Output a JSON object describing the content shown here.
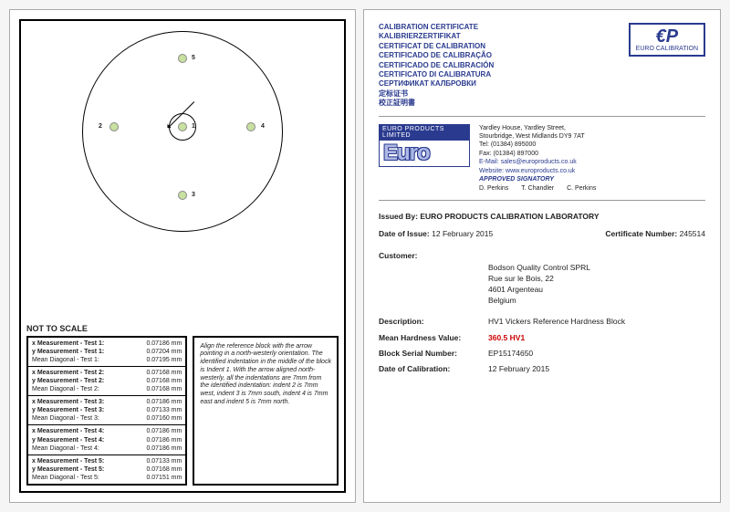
{
  "left": {
    "not_to_scale": "NOT TO SCALE",
    "point_labels": [
      "1",
      "2",
      "3",
      "4",
      "5"
    ],
    "measurements": [
      {
        "test": "1",
        "x": "0.07186 mm",
        "y": "0.07204 mm",
        "mean": "0.07195 mm"
      },
      {
        "test": "2",
        "x": "0.07168 mm",
        "y": "0.07168 mm",
        "mean": "0.07168 mm"
      },
      {
        "test": "3",
        "x": "0.07186 mm",
        "y": "0.07133 mm",
        "mean": "0.07160 mm"
      },
      {
        "test": "4",
        "x": "0.07186 mm",
        "y": "0.07186 mm",
        "mean": "0.07186 mm"
      },
      {
        "test": "5",
        "x": "0.07133 mm",
        "y": "0.07168 mm",
        "mean": "0.07151 mm"
      }
    ],
    "x_label_prefix": "x Measurement - Test ",
    "y_label_prefix": "y Measurement - Test ",
    "mean_label_prefix": "Mean Diagonal - Test ",
    "instructions": "Align the reference block with the arrow pointing in a north-westerly orientation. The identified indentation in the middle of the block is Indent 1. With the arrow aligned north-westerly, all the indentations are 7mm from the identified indentation: indent 2 is 7mm west, indent 3 is 7mm south, indent 4 is 7mm east and indent 5 is 7mm north."
  },
  "right": {
    "titles": [
      "CALIBRATION CERTIFICATE",
      "KALIBRIERZERTIFIKAT",
      "CERTIFICAT DE CALIBRATION",
      "CERTIFICADO DE CALIBRAÇÃO",
      "CERTIFICADO DE CALIBRACIÓN",
      "CERTIFICATO DI CALIBRATURA",
      "СЕРТИФИКАТ КАЛБРОВКИ",
      "定标证书",
      "校正証明書"
    ],
    "logo": {
      "ep": "€P",
      "label": "EURO CALIBRATION"
    },
    "banner": "EURO PRODUCTS LIMITED",
    "euro_text": "Euro",
    "company": {
      "addr1": "Yardley House, Yardley Street,",
      "addr2": "Stourbridge, West Midlands DY9 7AT",
      "tel": "Tel:   (01384) 895000",
      "fax": "Fax:  (01384) 897000",
      "email": "E-Mail: sales@europroducts.co.uk",
      "web": "Website: www.europroducts.co.uk",
      "signatory_label": "APPROVED SIGNATORY",
      "sig1": "D. Perkins",
      "sig2": "T. Chandler",
      "sig3": "C. Perkins"
    },
    "issued_by_label": "Issued By:",
    "issued_by": "EURO PRODUCTS CALIBRATION LABORATORY",
    "date_issue_label": "Date of Issue:",
    "date_issue": "12 February 2015",
    "cert_no_label": "Certificate Number:",
    "cert_no": "245514",
    "customer_label": "Customer:",
    "customer": {
      "name": "Bodson Quality Control SPRL",
      "addr1": "Rue sur le Bois, 22",
      "addr2": "4601 Argenteau",
      "country": "Belgium"
    },
    "description_label": "Description:",
    "description": "HV1  Vickers Reference Hardness Block",
    "mean_label": "Mean Hardness Value:",
    "mean_value": "360.5 HV1",
    "serial_label": "Block Serial Number:",
    "serial": "EP15174650",
    "cal_date_label": "Date of Calibration:",
    "cal_date": "12 February 2015"
  }
}
